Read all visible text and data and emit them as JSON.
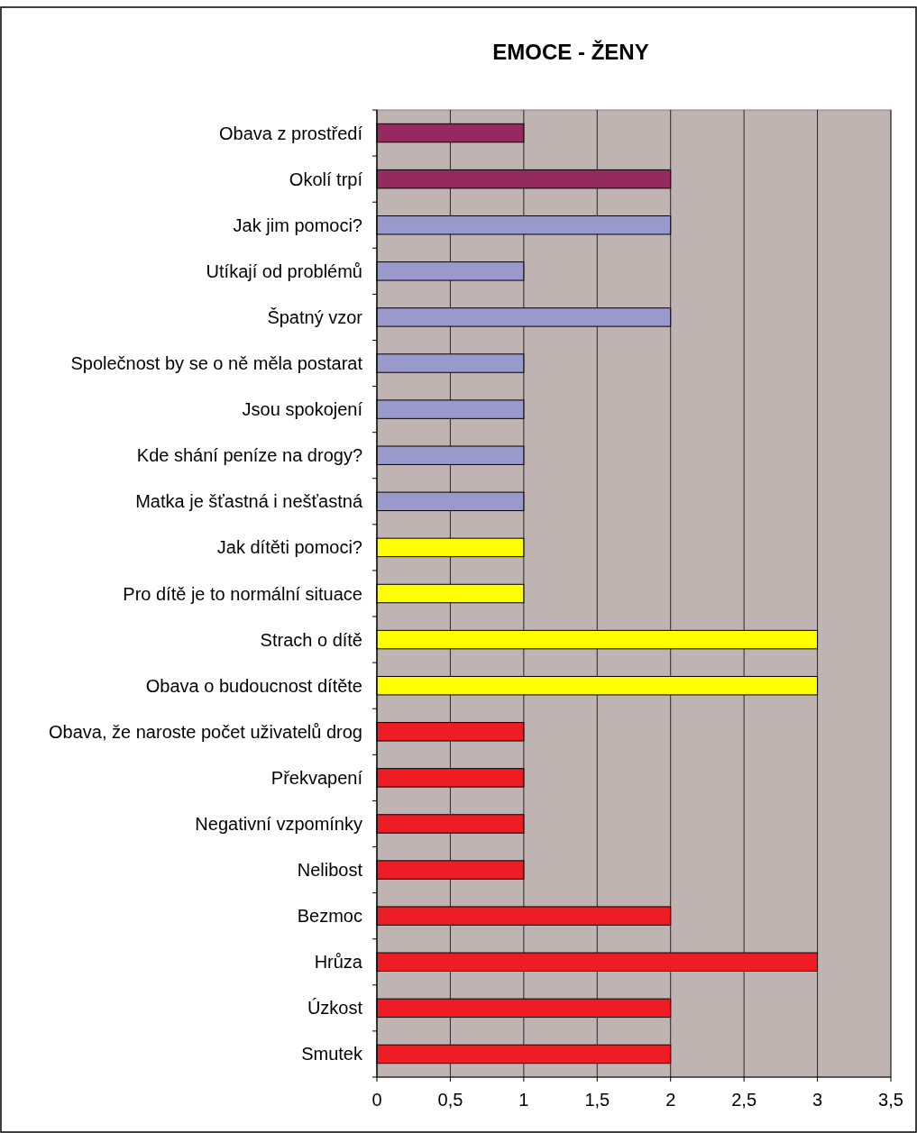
{
  "chart_data": {
    "type": "bar",
    "orientation": "horizontal",
    "title": "EMOCE - ŽENY",
    "categories": [
      "Obava z prostředí",
      "Okolí trpí",
      "Jak jim pomoci?",
      "Utíkají od problémů",
      "Špatný vzor",
      "Společnost by se o ně měla postarat",
      "Jsou spokojení",
      "Kde shání peníze na drogy?",
      "Matka je šťastná i nešťastná",
      "Jak dítěti pomoci?",
      "Pro dítě je to normální situace",
      "Strach o dítě",
      "Obava o budoucnost dítěte",
      "Obava, že naroste počet uživatelů drog",
      "Překvapení",
      "Negativní vzpomínky",
      "Nelibost",
      "Bezmoc",
      "Hrůza",
      "Úzkost",
      "Smutek"
    ],
    "values": [
      1,
      2,
      2,
      1,
      2,
      1,
      1,
      1,
      1,
      1,
      1,
      3,
      3,
      1,
      1,
      1,
      1,
      2,
      3,
      2,
      2
    ],
    "colors": [
      "#952a5e",
      "#952a5e",
      "#9999cc",
      "#9999cc",
      "#9999cc",
      "#9999cc",
      "#9999cc",
      "#9999cc",
      "#9999cc",
      "#ffff00",
      "#ffff00",
      "#ffff00",
      "#ffff00",
      "#ee1c24",
      "#ee1c24",
      "#ee1c24",
      "#ee1c24",
      "#ee1c24",
      "#ee1c24",
      "#ee1c24",
      "#ee1c24"
    ],
    "xlim": [
      0,
      3.5
    ],
    "xticks": [
      0,
      {
        "value": 0.5,
        "label": "0,5"
      },
      1,
      {
        "value": 1.5,
        "label": "1,5"
      },
      2,
      {
        "value": 2.5,
        "label": "2,5"
      },
      3,
      {
        "value": 3.5,
        "label": "3,5"
      }
    ],
    "grid": "x"
  }
}
